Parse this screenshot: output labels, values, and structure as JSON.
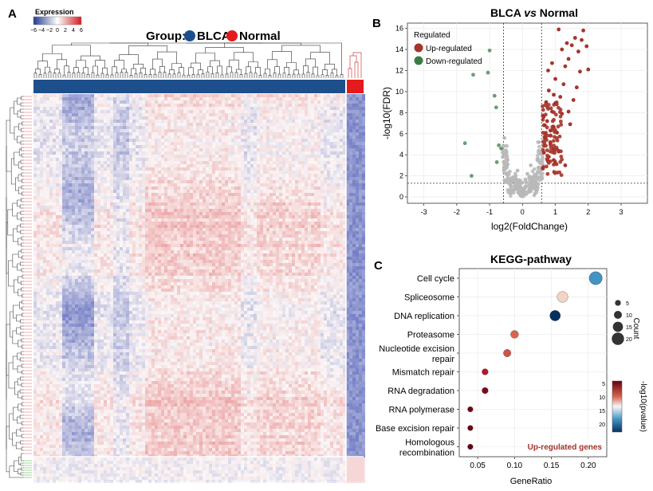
{
  "panel_a": {
    "label": "A",
    "legend_title": "Expression",
    "legend_ticks": [
      "−6",
      "−4",
      "−2",
      "0",
      "2",
      "4",
      "6"
    ],
    "group_label": "Group:",
    "group_names": [
      "BLCA",
      "Normal"
    ],
    "colors": {
      "low": "#1f3a93",
      "high": "#d7191c",
      "blca": "#1d4f8c",
      "normal": "#e41a1c",
      "row_tree_top": "#e07b7b",
      "row_tree_bottom": "#66bb55"
    }
  },
  "panel_b": {
    "label": "B",
    "title_part1": "BLCA ",
    "title_vs": "vs",
    "title_part2": " Normal",
    "legend_title": "Regulated",
    "legend_items": [
      "Up-regulated",
      "Down-regulated"
    ],
    "colors": {
      "up": "#a5342a",
      "down": "#3a7d44",
      "ns": "#b8b8b8"
    }
  },
  "panel_c": {
    "label": "C",
    "annotation": "Up-regulated genes",
    "size_legend_title": "Count",
    "size_legend_values": [
      "5",
      "10",
      "15",
      "20"
    ],
    "color_legend_title": "-log10(pvalue)",
    "color_legend_ticks": [
      "5",
      "10",
      "15",
      "20"
    ]
  },
  "chart_data": [
    {
      "type": "heatmap",
      "title": "",
      "color_range": [
        -6,
        6
      ],
      "groups": [
        "BLCA",
        "Normal"
      ]
    },
    {
      "type": "scatter",
      "title": "BLCA vs Normal",
      "xlabel": "log2(FoldChange)",
      "ylabel": "-log10(FDR)",
      "xlim": [
        -3.5,
        3.8
      ],
      "ylim": [
        -0.6,
        16.5
      ],
      "xticks": [
        -3,
        -2,
        -1,
        0,
        1,
        2,
        3
      ],
      "yticks": [
        0,
        2,
        4,
        6,
        8,
        10,
        12,
        14,
        16
      ],
      "thresholds": {
        "logfc": [
          -0.58,
          0.58
        ],
        "fdr": 1.3
      },
      "down_points": [
        [
          -1.55,
          2.0
        ],
        [
          -1.75,
          5.1
        ],
        [
          -1.5,
          11.6
        ],
        [
          -1.05,
          11.8
        ],
        [
          -1.0,
          13.9
        ],
        [
          -0.85,
          9.6
        ],
        [
          -0.8,
          8.5
        ],
        [
          -0.72,
          4.9
        ],
        [
          -0.78,
          3.3
        ],
        [
          -0.65,
          4.6
        ]
      ],
      "up_points": [
        [
          0.62,
          2.7
        ],
        [
          0.65,
          4.2
        ],
        [
          0.7,
          5.6
        ],
        [
          0.68,
          6.8
        ],
        [
          0.75,
          7.2
        ],
        [
          0.8,
          3.8
        ],
        [
          0.85,
          6.3
        ],
        [
          0.9,
          8.1
        ],
        [
          0.72,
          9.0
        ],
        [
          0.8,
          10.1
        ],
        [
          0.95,
          9.7
        ],
        [
          1.0,
          11.2
        ],
        [
          1.05,
          6.1
        ],
        [
          1.1,
          4.3
        ],
        [
          1.2,
          7.9
        ],
        [
          1.15,
          9.5
        ],
        [
          0.9,
          12.7
        ],
        [
          1.3,
          12.4
        ],
        [
          1.4,
          13.1
        ],
        [
          1.2,
          14.0
        ],
        [
          1.5,
          14.4
        ],
        [
          1.6,
          15.1
        ],
        [
          1.1,
          15.9
        ],
        [
          1.7,
          13.8
        ],
        [
          1.75,
          11.9
        ],
        [
          1.55,
          9.2
        ],
        [
          1.4,
          8.1
        ],
        [
          1.3,
          3.0
        ],
        [
          1.8,
          14.9
        ],
        [
          1.95,
          14.3
        ],
        [
          2.0,
          12.1
        ],
        [
          1.85,
          15.8
        ],
        [
          1.25,
          10.7
        ],
        [
          1.0,
          8.9
        ],
        [
          0.85,
          5.1
        ],
        [
          0.95,
          3.5
        ],
        [
          1.65,
          10.4
        ],
        [
          1.45,
          6.9
        ],
        [
          0.78,
          12.0
        ],
        [
          1.35,
          14.6
        ]
      ],
      "ns_points": [
        [
          -0.5,
          2.2
        ],
        [
          -0.45,
          3.1
        ],
        [
          -0.3,
          1.5
        ],
        [
          -0.2,
          0.8
        ],
        [
          -0.1,
          1.2
        ],
        [
          0.0,
          0.5
        ],
        [
          0.1,
          1.0
        ],
        [
          0.2,
          0.7
        ],
        [
          0.3,
          1.4
        ],
        [
          0.4,
          2.0
        ],
        [
          0.5,
          2.8
        ],
        [
          0.45,
          3.6
        ],
        [
          0.35,
          1.9
        ],
        [
          -0.35,
          0.4
        ],
        [
          -0.55,
          1.6
        ],
        [
          0.15,
          2.2
        ],
        [
          -0.15,
          2.5
        ],
        [
          0.25,
          3.0
        ],
        [
          0.55,
          4.1
        ],
        [
          0.5,
          5.2
        ],
        [
          -0.6,
          3.8
        ],
        [
          -0.55,
          5.6
        ],
        [
          0.05,
          0.2
        ],
        [
          -0.05,
          0.9
        ],
        [
          0.38,
          0.3
        ]
      ]
    },
    {
      "type": "scatter",
      "title": "KEGG-pathway",
      "xlabel": "GeneRatio",
      "ylabel": "",
      "xlim": [
        0.025,
        0.225
      ],
      "xticks": [
        0.05,
        0.1,
        0.15,
        0.2
      ],
      "xtick_labels": [
        "0.05",
        "0.10",
        "0.15",
        "0.20"
      ],
      "categories": [
        "Cell cycle",
        "Spliceosome",
        "DNA replication",
        "Proteasome",
        "Nucleotide excision repair",
        "Mismatch repair",
        "RNA degradation",
        "RNA polymerase",
        "Base excision repair",
        "Homologous recombination"
      ],
      "series": [
        {
          "name": "GeneRatio",
          "values": [
            0.21,
            0.165,
            0.155,
            0.1,
            0.09,
            0.06,
            0.06,
            0.04,
            0.04,
            0.04
          ]
        },
        {
          "name": "Count",
          "values": [
            22,
            17,
            16,
            10,
            9,
            6,
            6,
            4,
            4,
            4
          ]
        },
        {
          "name": "-log10(pvalue)",
          "values": [
            17,
            11,
            22,
            8,
            7.5,
            6,
            4,
            3.5,
            3.5,
            3
          ]
        }
      ]
    }
  ]
}
